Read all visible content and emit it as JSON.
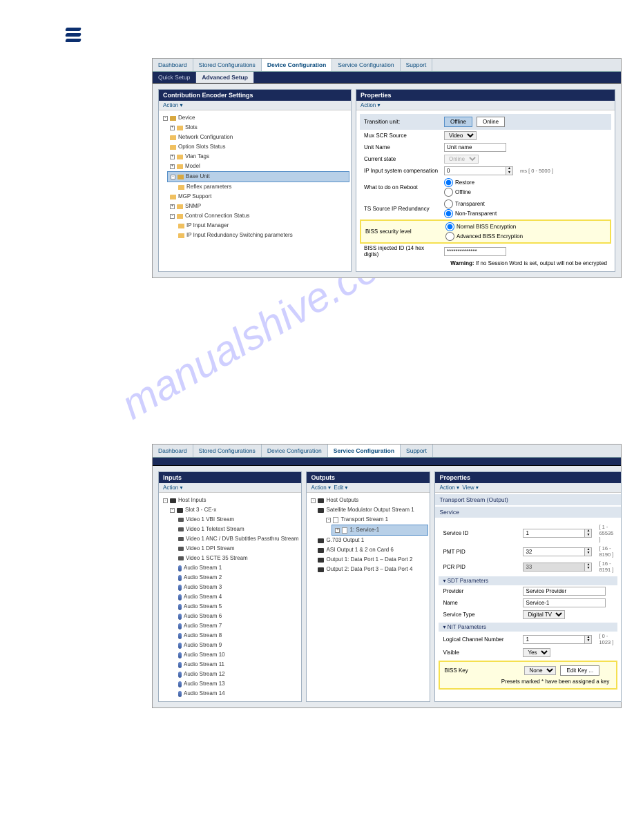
{
  "top_tabs": {
    "t0": "Dashboard",
    "t1": "Stored Configurations",
    "t2": "Device Configuration",
    "t3": "Service Configuration",
    "t4": "Support"
  },
  "nav": {
    "quick": "Quick Setup",
    "adv": "Advanced Setup"
  },
  "panel1": {
    "left_title": "Contribution Encoder Settings",
    "action": "Action ▾",
    "tree": {
      "device": "Device",
      "slots": "Slots",
      "netcfg": "Network Configuration",
      "optslot": "Option Slots Status",
      "vlan": "Vlan Tags",
      "model": "Model",
      "base": "Base Unit",
      "reflex": "Reflex parameters",
      "mgp": "MGP Support",
      "snmp": "SNMP",
      "ccs": "Control Connection Status",
      "ipim": "IP Input Manager",
      "ipir": "IP Input Redundancy Switching parameters"
    },
    "right_title": "Properties",
    "props": {
      "trans_label": "Transition unit:",
      "offline": "Offline",
      "online": "Online",
      "mux": "Mux SCR Source",
      "mux_val": "Video",
      "uname": "Unit Name",
      "uname_val": "Unit name",
      "cstate": "Current state",
      "cstate_val": "Online",
      "ipcomp": "IP Input system compensation",
      "ipcomp_val": "0",
      "ipcomp_hint": "ms  [ 0 - 5000 ]",
      "reboot": "What to do on Reboot",
      "r1": "Restore",
      "r2": "Offline",
      "tsred": "TS Source IP Redundancy",
      "t1": "Transparent",
      "t2": "Non-Transparent",
      "biss": "BISS security level",
      "b1": "Normal BISS Encryption",
      "b2": "Advanced BISS Encryption",
      "bissinj": "BISS injected ID (14 hex digits)",
      "bissinj_val": "**************",
      "warn_pre": "Warning:",
      "warn": " If no Session Word is set, output will not be encrypted"
    }
  },
  "panel2": {
    "inputs_title": "Inputs",
    "outputs_title": "Outputs",
    "props_title": "Properties",
    "action": "Action ▾",
    "edit": "Edit ▾",
    "view": "View ▾",
    "in_tree": {
      "host": "Host Inputs",
      "slot": "Slot 3 - CE-x",
      "v1": "Video 1 VBI Stream",
      "v2": "Video 1 Teletext Stream",
      "v3": "Video 1 ANC / DVB Subtitles Passthru Stream",
      "v4": "Video 1 DPI Stream",
      "v5": "Video 1 SCTE 35 Stream",
      "a": "Audio Stream "
    },
    "out_tree": {
      "host": "Host Outputs",
      "sat": "Satellite Modulator Output Stream 1",
      "ts": "Transport Stream 1",
      "srv": "1: Service-1",
      "g703": "G.703 Output 1",
      "asi": "ASI Output 1 & 2 on Card 6",
      "o1": "Output 1: Data Port 1 – Data Port 2",
      "o2": "Output 2: Data Port 3 – Data Port 4"
    },
    "props": {
      "sub1": "Transport Stream (Output)",
      "svc": "Service",
      "sid": "Service ID",
      "sid_val": "1",
      "sid_hint": "[ 1 - 65535 ]",
      "pmt": "PMT PID",
      "pmt_val": "32",
      "pmt_hint": "[ 16 - 8190 ]",
      "pcr": "PCR PID",
      "pcr_val": "33",
      "pcr_hint": "[ 16 - 8191 ]",
      "sdt": "▾ SDT Parameters",
      "prov": "Provider",
      "prov_val": "Service Provider",
      "name": "Name",
      "name_val": "Service-1",
      "stype": "Service Type",
      "stype_val": "Digital TV",
      "nit": "▾ NIT Parameters",
      "lcn": "Logical Channel Number",
      "lcn_val": "1",
      "lcn_hint": "[ 0 - 1023 ]",
      "vis": "Visible",
      "vis_val": "Yes",
      "bisskey": "BISS Key",
      "bisskey_val": "None",
      "editkey": "Edit Key ...",
      "biss_note": "Presets marked * have been assigned a key"
    }
  }
}
